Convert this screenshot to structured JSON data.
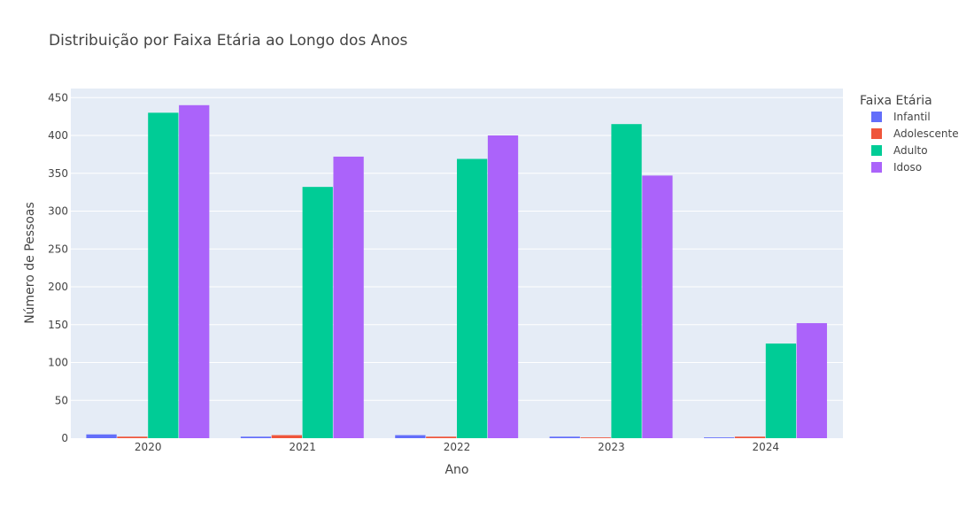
{
  "chart_data": {
    "type": "bar",
    "title": "Distribuição por Faixa Etária ao Longo dos Anos",
    "xlabel": "Ano",
    "ylabel": "Número de Pessoas",
    "categories": [
      "2020",
      "2021",
      "2022",
      "2023",
      "2024"
    ],
    "ylim": [
      0,
      450
    ],
    "yticks": [
      0,
      50,
      100,
      150,
      200,
      250,
      300,
      350,
      400,
      450
    ],
    "grid": true,
    "legend_title": "Faixa Etária",
    "legend_position": "right",
    "series": [
      {
        "name": "Infantil",
        "color": "#636efa",
        "values": [
          5,
          2,
          4,
          2,
          1
        ]
      },
      {
        "name": "Adolescente",
        "color": "#ef553b",
        "values": [
          2,
          4,
          2,
          1,
          2
        ]
      },
      {
        "name": "Adulto",
        "color": "#00cc96",
        "values": [
          430,
          332,
          369,
          415,
          125
        ]
      },
      {
        "name": "Idoso",
        "color": "#ab63fa",
        "values": [
          440,
          372,
          400,
          347,
          152
        ]
      }
    ]
  }
}
